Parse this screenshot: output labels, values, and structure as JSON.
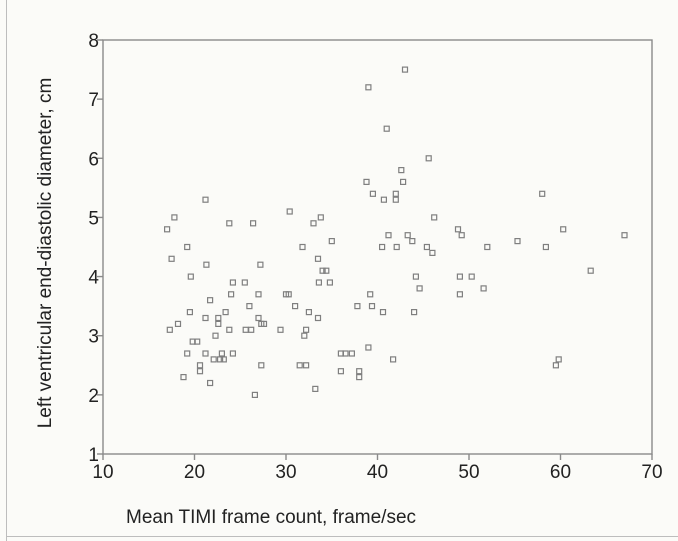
{
  "chart_data": {
    "type": "scatter",
    "xlabel": "Mean TIMI frame count, frame/sec",
    "ylabel": "Left ventricular end-diastolic diameter, cm",
    "xlim": [
      10,
      70
    ],
    "ylim": [
      1,
      8
    ],
    "xticks": [
      10,
      20,
      30,
      40,
      50,
      60,
      70
    ],
    "yticks": [
      1,
      2,
      3,
      4,
      5,
      6,
      7,
      8
    ],
    "grid": false,
    "marker": "open-square",
    "marker_color": "#7f7f7f",
    "points": [
      [
        17,
        4.8
      ],
      [
        17.5,
        4.3
      ],
      [
        17.8,
        5.0
      ],
      [
        17.3,
        3.1
      ],
      [
        18.2,
        3.2
      ],
      [
        18.8,
        2.3
      ],
      [
        19.2,
        2.7
      ],
      [
        19.5,
        3.4
      ],
      [
        19.8,
        2.9
      ],
      [
        19.2,
        4.5
      ],
      [
        19.6,
        4.0
      ],
      [
        20.3,
        2.9
      ],
      [
        20.6,
        2.5
      ],
      [
        20.6,
        2.4
      ],
      [
        21.2,
        2.7
      ],
      [
        21.2,
        3.3
      ],
      [
        21.3,
        4.2
      ],
      [
        21.2,
        5.3
      ],
      [
        21.7,
        3.6
      ],
      [
        21.7,
        2.2
      ],
      [
        22.1,
        2.6
      ],
      [
        22.3,
        3.0
      ],
      [
        22.6,
        3.2
      ],
      [
        22.6,
        3.3
      ],
      [
        22.8,
        2.6
      ],
      [
        23.0,
        2.7
      ],
      [
        23.2,
        2.6
      ],
      [
        23.4,
        3.4
      ],
      [
        23.8,
        3.1
      ],
      [
        24.0,
        3.7
      ],
      [
        24.2,
        2.7
      ],
      [
        24.2,
        3.9
      ],
      [
        23.8,
        4.9
      ],
      [
        25.5,
        3.9
      ],
      [
        25.6,
        3.1
      ],
      [
        26.0,
        3.5
      ],
      [
        26.2,
        3.1
      ],
      [
        26.4,
        4.9
      ],
      [
        26.6,
        2.0
      ],
      [
        27.0,
        3.7
      ],
      [
        27.0,
        3.3
      ],
      [
        27.2,
        4.2
      ],
      [
        27.3,
        3.2
      ],
      [
        27.3,
        2.5
      ],
      [
        27.6,
        3.2
      ],
      [
        29.4,
        3.1
      ],
      [
        30.0,
        3.7
      ],
      [
        30.3,
        3.7
      ],
      [
        30.4,
        5.1
      ],
      [
        31.0,
        3.5
      ],
      [
        31.5,
        2.5
      ],
      [
        31.8,
        4.5
      ],
      [
        32.0,
        3.0
      ],
      [
        32.2,
        3.1
      ],
      [
        32.2,
        2.5
      ],
      [
        32.5,
        3.4
      ],
      [
        33.0,
        4.9
      ],
      [
        33.2,
        2.1
      ],
      [
        33.5,
        3.3
      ],
      [
        33.5,
        4.3
      ],
      [
        33.6,
        3.9
      ],
      [
        33.8,
        5.0
      ],
      [
        34.0,
        4.1
      ],
      [
        34.4,
        4.1
      ],
      [
        34.8,
        3.9
      ],
      [
        35.0,
        4.6
      ],
      [
        36.0,
        2.7
      ],
      [
        36.0,
        2.4
      ],
      [
        36.5,
        2.7
      ],
      [
        37.2,
        2.7
      ],
      [
        37.8,
        3.5
      ],
      [
        38.0,
        2.4
      ],
      [
        38.0,
        2.3
      ],
      [
        39.0,
        7.2
      ],
      [
        38.8,
        5.6
      ],
      [
        39.0,
        2.8
      ],
      [
        39.2,
        3.7
      ],
      [
        39.4,
        3.5
      ],
      [
        39.5,
        5.4
      ],
      [
        40.5,
        4.5
      ],
      [
        40.6,
        3.4
      ],
      [
        40.7,
        5.3
      ],
      [
        41.0,
        6.5
      ],
      [
        41.2,
        4.7
      ],
      [
        41.7,
        2.6
      ],
      [
        42.0,
        5.3
      ],
      [
        42.0,
        5.4
      ],
      [
        42.1,
        4.5
      ],
      [
        42.6,
        5.8
      ],
      [
        42.8,
        5.6
      ],
      [
        43.0,
        7.5
      ],
      [
        43.3,
        4.7
      ],
      [
        43.8,
        4.6
      ],
      [
        44.0,
        3.4
      ],
      [
        44.2,
        4.0
      ],
      [
        44.6,
        3.8
      ],
      [
        45.4,
        4.5
      ],
      [
        45.6,
        6.0
      ],
      [
        46.0,
        4.4
      ],
      [
        46.2,
        5.0
      ],
      [
        48.8,
        4.8
      ],
      [
        49.0,
        3.7
      ],
      [
        49.0,
        4.0
      ],
      [
        49.2,
        4.7
      ],
      [
        50.3,
        4.0
      ],
      [
        51.6,
        3.8
      ],
      [
        52.0,
        4.5
      ],
      [
        55.3,
        4.6
      ],
      [
        58.0,
        5.4
      ],
      [
        58.4,
        4.5
      ],
      [
        59.5,
        2.5
      ],
      [
        59.8,
        2.6
      ],
      [
        60.3,
        4.8
      ],
      [
        63.3,
        4.1
      ],
      [
        67.0,
        4.7
      ]
    ]
  }
}
